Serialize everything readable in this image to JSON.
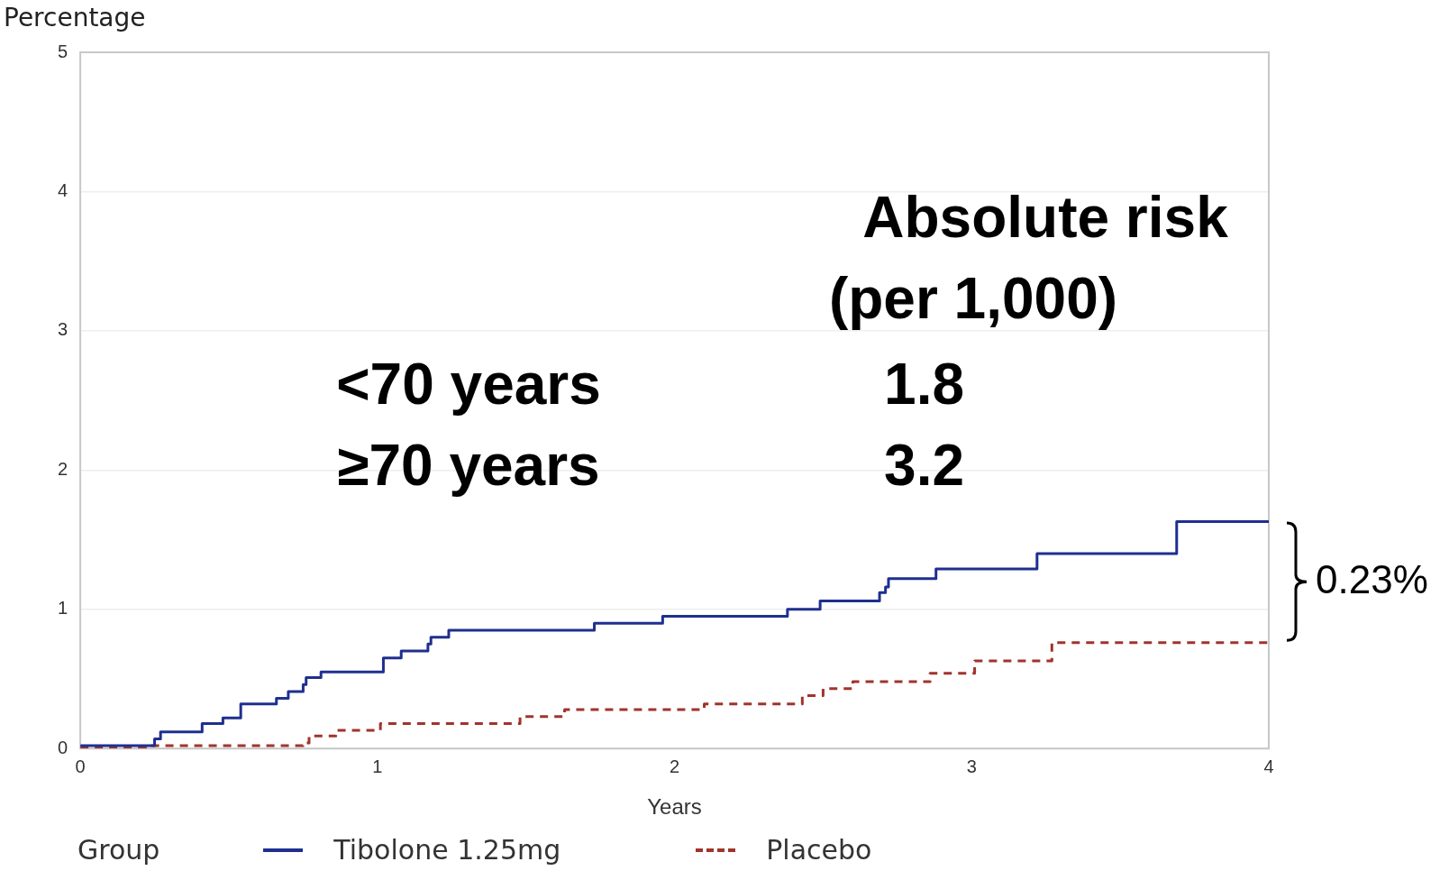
{
  "chart_data": {
    "type": "step",
    "xlabel": "Years",
    "ylabel": "Percentage",
    "legend_title": "Group",
    "legend": "bottom",
    "grid": "y",
    "xlim": [
      0,
      4
    ],
    "xticks": [
      0,
      1,
      2,
      3,
      4
    ],
    "ylim": [
      0,
      5
    ],
    "yticks": [
      0,
      1,
      2,
      3,
      4,
      5
    ],
    "annotations": [
      "Absolute risk",
      "(per 1,000)",
      "<70 years",
      "1.8",
      "≥70 years",
      "3.2",
      "0.23%"
    ],
    "series": [
      {
        "name": "Tibolone 1.25mg",
        "color": "#1f2f8f",
        "line_style": "solid",
        "x": [
          0,
          0.22,
          0.25,
          0.27,
          0.41,
          0.48,
          0.54,
          0.66,
          0.7,
          0.75,
          0.76,
          0.81,
          1.02,
          1.08,
          1.17,
          1.18,
          1.24,
          1.73,
          1.96,
          2.38,
          2.49,
          2.69,
          2.71,
          2.72,
          2.88,
          3.22,
          3.69,
          4
        ],
        "values": [
          0.02,
          0.02,
          0.07,
          0.12,
          0.18,
          0.22,
          0.32,
          0.36,
          0.41,
          0.46,
          0.51,
          0.55,
          0.65,
          0.7,
          0.75,
          0.8,
          0.85,
          0.9,
          0.95,
          1.0,
          1.06,
          1.12,
          1.16,
          1.22,
          1.29,
          1.4,
          1.63,
          1.63
        ]
      },
      {
        "name": "Placebo",
        "color": "#a0342c",
        "line_style": "dashed",
        "x": [
          0,
          0.22,
          0.75,
          0.77,
          0.86,
          1.01,
          1.48,
          1.63,
          2.1,
          2.43,
          2.5,
          2.6,
          2.86,
          3.01,
          3.27,
          4
        ],
        "values": [
          0.01,
          0.02,
          0.04,
          0.09,
          0.13,
          0.18,
          0.23,
          0.28,
          0.32,
          0.38,
          0.43,
          0.48,
          0.54,
          0.63,
          0.76,
          0.76
        ]
      }
    ]
  }
}
